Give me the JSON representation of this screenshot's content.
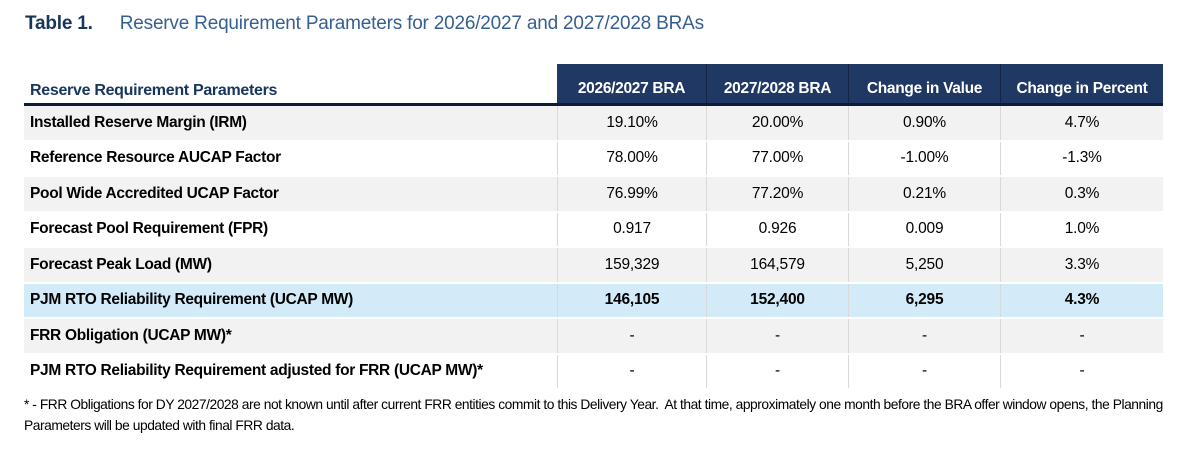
{
  "page": {
    "title_label": "Table 1.",
    "title_text": "Reserve Requirement Parameters for 2026/2027 and 2027/2028 BRAs"
  },
  "table": {
    "row_header": "Reserve Requirement Parameters",
    "columns": [
      "2026/2027 BRA",
      "2027/2028 BRA",
      "Change in Value",
      "Change in Percent"
    ],
    "rows": [
      {
        "label": "Installed Reserve Margin (IRM)",
        "values": [
          "19.10%",
          "20.00%",
          "0.90%",
          "4.7%"
        ],
        "highlight": false
      },
      {
        "label": "Reference Resource AUCAP Factor",
        "values": [
          "78.00%",
          "77.00%",
          "-1.00%",
          "-1.3%"
        ],
        "highlight": false
      },
      {
        "label": "Pool Wide Accredited UCAP Factor",
        "values": [
          "76.99%",
          "77.20%",
          "0.21%",
          "0.3%"
        ],
        "highlight": false
      },
      {
        "label": "Forecast Pool Requirement (FPR)",
        "values": [
          "0.917",
          "0.926",
          "0.009",
          "1.0%"
        ],
        "highlight": false
      },
      {
        "label": "Forecast Peak Load (MW)",
        "values": [
          "159,329",
          "164,579",
          "5,250",
          "3.3%"
        ],
        "highlight": false
      },
      {
        "label": "PJM RTO Reliability Requirement (UCAP MW)",
        "values": [
          "146,105",
          "152,400",
          "6,295",
          "4.3%"
        ],
        "highlight": true
      },
      {
        "label": "FRR Obligation (UCAP MW)*",
        "values": [
          "-",
          "-",
          "-",
          "-"
        ],
        "highlight": false
      },
      {
        "label": "PJM RTO Reliability Requirement adjusted for FRR (UCAP MW)*",
        "values": [
          "-",
          "-",
          "-",
          "-"
        ],
        "highlight": false
      }
    ]
  },
  "footnote": "* - FRR Obligations for DY 2027/2028 are not known until after current FRR entities commit to this Delivery Year.  At that time, approximately one month before the BRA offer window opens, the Planning Parameters will be updated with final FRR data.",
  "colors": {
    "header_bg": "#1F3864",
    "header_text": "#FFFFFF",
    "title_label_color": "#17365D",
    "title_text_color": "#365F91",
    "highlight_row_bg": "#D3EAF8",
    "stripe_row_bg": "#F2F2F2",
    "dark_border": "#0C1C38",
    "divider": "#D9D9D9"
  }
}
